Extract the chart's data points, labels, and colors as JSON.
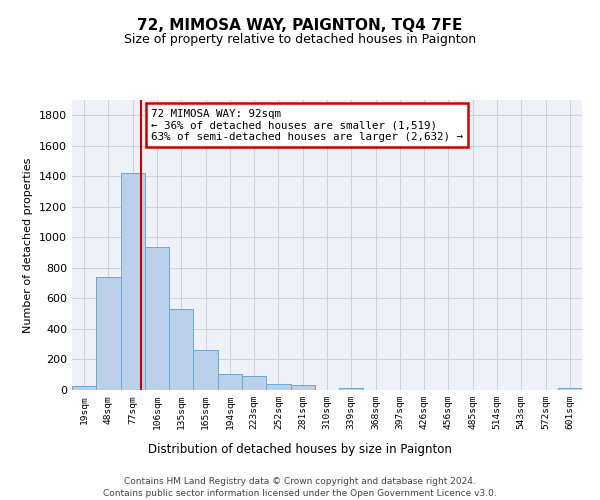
{
  "title1": "72, MIMOSA WAY, PAIGNTON, TQ4 7FE",
  "title2": "Size of property relative to detached houses in Paignton",
  "xlabel": "Distribution of detached houses by size in Paignton",
  "ylabel": "Number of detached properties",
  "footer1": "Contains HM Land Registry data © Crown copyright and database right 2024.",
  "footer2": "Contains public sector information licensed under the Open Government Licence v3.0.",
  "bin_labels": [
    "19sqm",
    "48sqm",
    "77sqm",
    "106sqm",
    "135sqm",
    "165sqm",
    "194sqm",
    "223sqm",
    "252sqm",
    "281sqm",
    "310sqm",
    "339sqm",
    "368sqm",
    "397sqm",
    "426sqm",
    "456sqm",
    "485sqm",
    "514sqm",
    "543sqm",
    "572sqm",
    "601sqm"
  ],
  "bar_values": [
    25,
    740,
    1420,
    935,
    530,
    265,
    105,
    90,
    40,
    30,
    0,
    15,
    0,
    0,
    0,
    0,
    0,
    0,
    0,
    0,
    10
  ],
  "bar_color": "#bad0e8",
  "bar_edge_color": "#6aaad4",
  "grid_color": "#c8d4e0",
  "property_label": "72 MIMOSA WAY: 92sqm",
  "annotation_line1": "← 36% of detached houses are smaller (1,519)",
  "annotation_line2": "63% of semi-detached houses are larger (2,632) →",
  "vline_color": "#cc0000",
  "vline_x": 2.35,
  "ylim": [
    0,
    1900
  ],
  "yticks": [
    0,
    200,
    400,
    600,
    800,
    1000,
    1200,
    1400,
    1600,
    1800
  ],
  "background_color": "#ffffff",
  "plot_bg_color": "#eef2f8"
}
